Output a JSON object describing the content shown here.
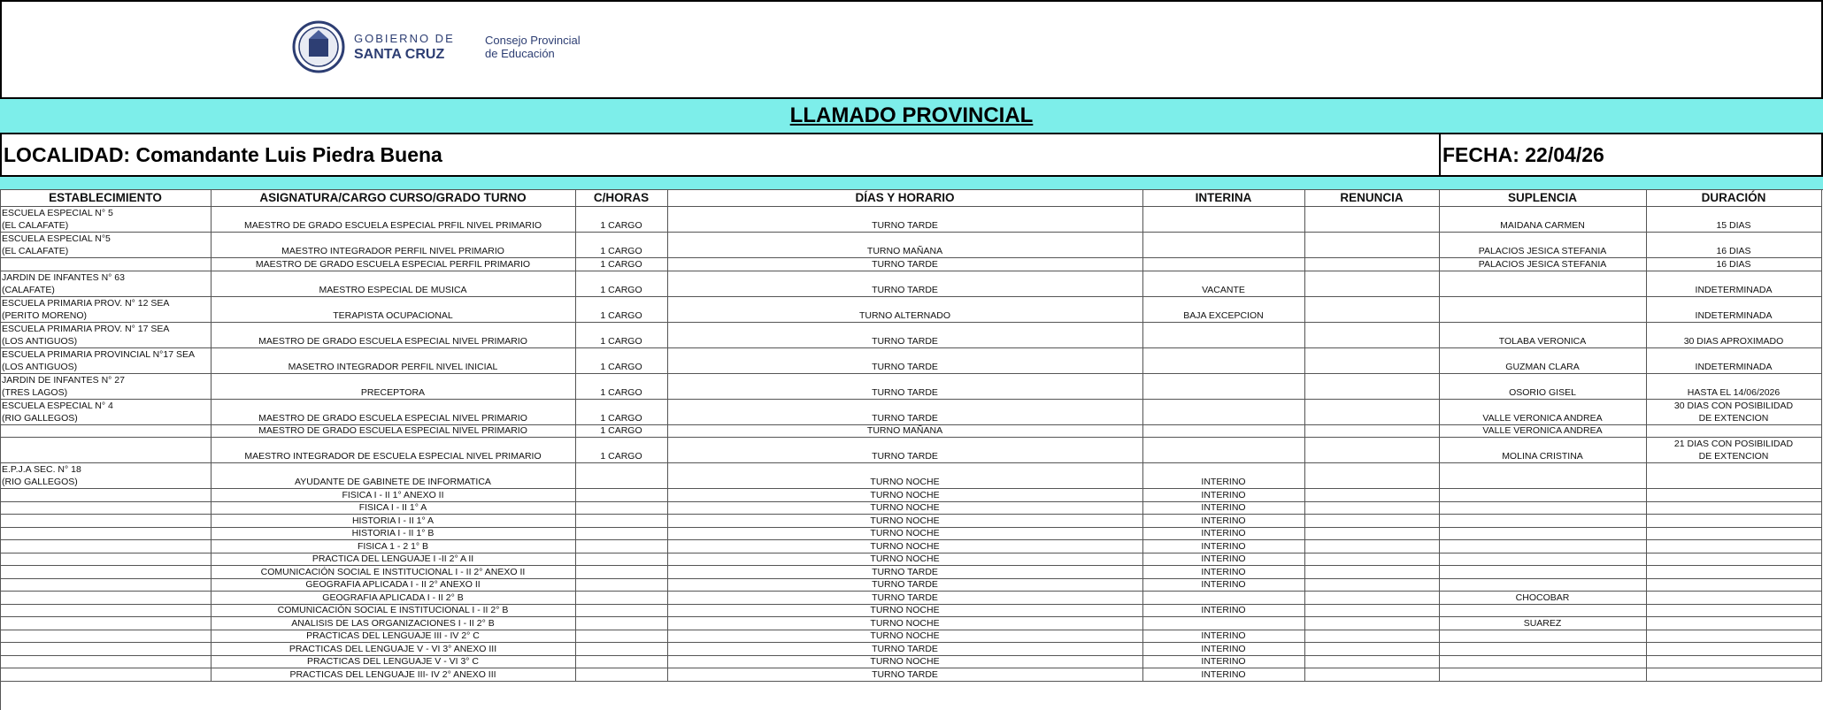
{
  "header": {
    "logo": {
      "line1": "GOBIERNO DE",
      "line2": "SANTA CRUZ",
      "org1": "Consejo Provincial",
      "org2": "de Educación"
    },
    "title": "LLAMADO PROVINCIAL",
    "localidad": "LOCALIDAD: Comandante Luis Piedra Buena",
    "fecha": "FECHA: 22/04/26"
  },
  "table": {
    "columns": {
      "est": "ESTABLECIMIENTO",
      "asig": "ASIGNATURA/CARGO  CURSO/GRADO  TURNO",
      "hs": "C/HORAS",
      "dias": "DÍAS Y HORARIO",
      "interina": "INTERINA",
      "renuncia": "RENUNCIA",
      "suplencia": "SUPLENCIA",
      "duracion": "DURACIÓN"
    },
    "rows": [
      {
        "est": "ESCUELA ESPECIAL N° 5\n(EL CALAFATE)",
        "asig": "MAESTRO DE GRADO ESCUELA ESPECIAL PRFIL NIVEL  PRIMARIO",
        "hs": "1 CARGO",
        "dias": "TURNO TARDE",
        "suplencia": "MAIDANA CARMEN",
        "duracion": "15 DIAS"
      },
      {
        "est": "ESCUELA ESPECIAL N°5\n(EL CALAFATE)",
        "asig": "MAESTRO INTEGRADOR PERFIL NIVEL PRIMARIO",
        "hs": "1 CARGO",
        "dias": "TURNO MAÑANA",
        "suplencia": "PALACIOS JESICA STEFANIA",
        "duracion": "16 DIAS"
      },
      {
        "asig": "MAESTRO DE GRADO ESCUELA ESPECIAL PERFIL PRIMARIO",
        "hs": "1 CARGO",
        "dias": "TURNO  TARDE",
        "suplencia": "PALACIOS JESICA STEFANIA",
        "duracion": "16 DIAS"
      },
      {
        "est": "JARDIN DE INFANTES N° 63\n(CALAFATE)",
        "asig": "MAESTRO ESPECIAL DE MUSICA",
        "hs": "1 CARGO",
        "dias": "TURNO TARDE",
        "interina": "VACANTE",
        "duracion": "INDETERMINADA"
      },
      {
        "est": "ESCUELA PRIMARIA PROV. N° 12 SEA\n(PERITO MORENO)",
        "asig": "TERAPISTA OCUPACIONAL",
        "hs": "1 CARGO",
        "dias": "TURNO ALTERNADO",
        "interina": "BAJA EXCEPCION",
        "duracion": "INDETERMINADA"
      },
      {
        "est": "ESCUELA PRIMARIA PROV. N° 17 SEA\n(LOS ANTIGUOS)",
        "asig": "MAESTRO DE GRADO ESCUELA ESPECIAL NIVEL PRIMARIO",
        "hs": "1 CARGO",
        "dias": "TURNO TARDE",
        "suplencia": "TOLABA VERONICA",
        "duracion": "30 DIAS APROXIMADO"
      },
      {
        "est": "ESCUELA PRIMARIA PROVINCIAL N°17 SEA\n(LOS ANTIGUOS)",
        "asig": "MASETRO INTEGRADOR PERFIL NIVEL INICIAL",
        "hs": "1 CARGO",
        "dias": "TURNO TARDE",
        "suplencia": "GUZMAN CLARA",
        "duracion": "INDETERMINADA"
      },
      {
        "est": "JARDIN DE INFANTES N° 27\n(TRES LAGOS)",
        "asig": "PRECEPTORA",
        "hs": "1 CARGO",
        "dias": "TURNO TARDE",
        "suplencia": "OSORIO GISEL",
        "duracion": "HASTA EL 14/06/2026"
      },
      {
        "est": "ESCUELA ESPECIAL N° 4\n(RIO GALLEGOS)",
        "asig": "MAESTRO DE GRADO ESCUELA ESPECIAL NIVEL PRIMARIO",
        "hs": "1 CARGO",
        "dias": "TURNO TARDE",
        "suplencia": "VALLE VERONICA ANDREA",
        "duracion": "30 DIAS CON POSIBILIDAD\nDE EXTENCION"
      },
      {
        "asig": "MAESTRO DE GRADO ESCUELA ESPECIAL NIVEL PRIMARIO",
        "hs": "1 CARGO",
        "dias": "TURNO MAÑANA",
        "suplencia": "VALLE VERONICA ANDREA"
      },
      {
        "asig": "MAESTRO INTEGRADOR DE ESCUELA ESPECIAL NIVEL PRIMARIO",
        "hs": "1 CARGO",
        "dias": "TURNO TARDE",
        "suplencia": "MOLINA CRISTINA",
        "duracion": "21 DIAS CON POSIBILIDAD\nDE EXTENCION"
      },
      {
        "est": "E.P.J.A SEC. N° 18\n(RIO GALLEGOS)",
        "asig": "AYUDANTE DE GABINETE DE INFORMATICA",
        "dias": "TURNO NOCHE",
        "interina": "INTERINO"
      },
      {
        "asig": "FISICA I - II 1° ANEXO II",
        "dias": "TURNO NOCHE",
        "interina": "INTERINO"
      },
      {
        "asig": "FISICA I - II 1° A",
        "dias": "TURNO NOCHE",
        "interina": "INTERINO"
      },
      {
        "asig": "HISTORIA I - II 1° A",
        "dias": "TURNO NOCHE",
        "interina": "INTERINO"
      },
      {
        "asig": "HISTORIA I - II 1° B",
        "dias": "TURNO NOCHE",
        "interina": "INTERINO"
      },
      {
        "asig": "FISICA 1 - 2 1° B",
        "dias": "TURNO NOCHE",
        "interina": "INTERINO"
      },
      {
        "asig": "PRACTICA DEL LENGUAJE I -II 2° A II",
        "dias": "TURNO NOCHE",
        "interina": "INTERINO"
      },
      {
        "asig": "COMUNICACIÓN SOCIAL E INSTITUCIONAL I - II 2° ANEXO II",
        "dias": "TURNO TARDE",
        "interina": "INTERINO"
      },
      {
        "asig": "GEOGRAFIA APLICADA I - II  2° ANEXO II",
        "dias": "TURNO TARDE",
        "interina": "INTERINO"
      },
      {
        "asig": "GEOGRAFIA APLICADA I - II  2° B",
        "dias": "TURNO TARDE",
        "suplencia": "CHOCOBAR"
      },
      {
        "asig": "COMUNICACIÓN SOCIAL E INSTITUCIONAL I - II 2° B",
        "dias": "TURNO NOCHE",
        "interina": "INTERINO"
      },
      {
        "asig": "ANALISIS DE LAS ORGANIZACIONES I - II 2° B",
        "dias": "TURNO NOCHE",
        "suplencia": "SUAREZ"
      },
      {
        "asig": "PRACTICAS DEL LENGUAJE III - IV 2° C",
        "dias": "TURNO NOCHE",
        "interina": "INTERINO"
      },
      {
        "asig": "PRACTICAS DEL LENGUAJE V - VI 3° ANEXO III",
        "dias": "TURNO TARDE",
        "interina": "INTERINO"
      },
      {
        "asig": "PRACTICAS DEL LENGUAJE V - VI 3° C",
        "dias": "TURNO NOCHE",
        "interina": "INTERINO"
      },
      {
        "asig": "PRACTICAS DEL LENGUAJE III- IV 2° ANEXO III",
        "dias": "TURNO TARDE",
        "interina": "INTERINO"
      }
    ]
  }
}
